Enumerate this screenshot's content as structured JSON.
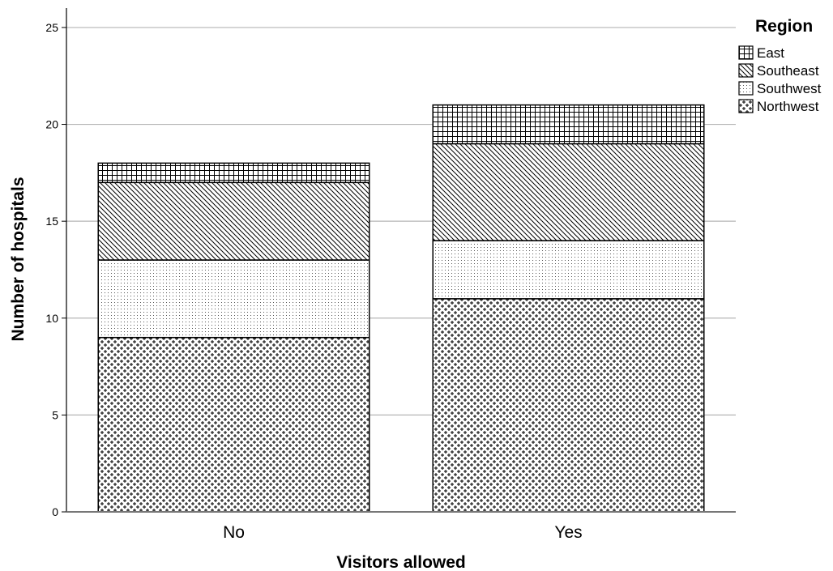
{
  "chart_data": {
    "type": "bar",
    "stacked": true,
    "title": "",
    "xlabel": "Visitors allowed",
    "ylabel": "Number of hospitals",
    "categories": [
      "No",
      "Yes"
    ],
    "ylim": [
      0,
      26
    ],
    "yticks": [
      0,
      5,
      10,
      15,
      20,
      25
    ],
    "grid": "horizontal",
    "legend_title": "Region",
    "legend_position": "top-right",
    "series": [
      {
        "name": "Northwest",
        "values": [
          9,
          11
        ],
        "pattern": "cross-dots"
      },
      {
        "name": "Southwest",
        "values": [
          4,
          3
        ],
        "pattern": "dots"
      },
      {
        "name": "Southeast",
        "values": [
          4,
          5
        ],
        "pattern": "diagonal"
      },
      {
        "name": "East",
        "values": [
          1,
          2
        ],
        "pattern": "grid"
      }
    ],
    "legend_order": [
      "East",
      "Southeast",
      "Southwest",
      "Northwest"
    ]
  }
}
